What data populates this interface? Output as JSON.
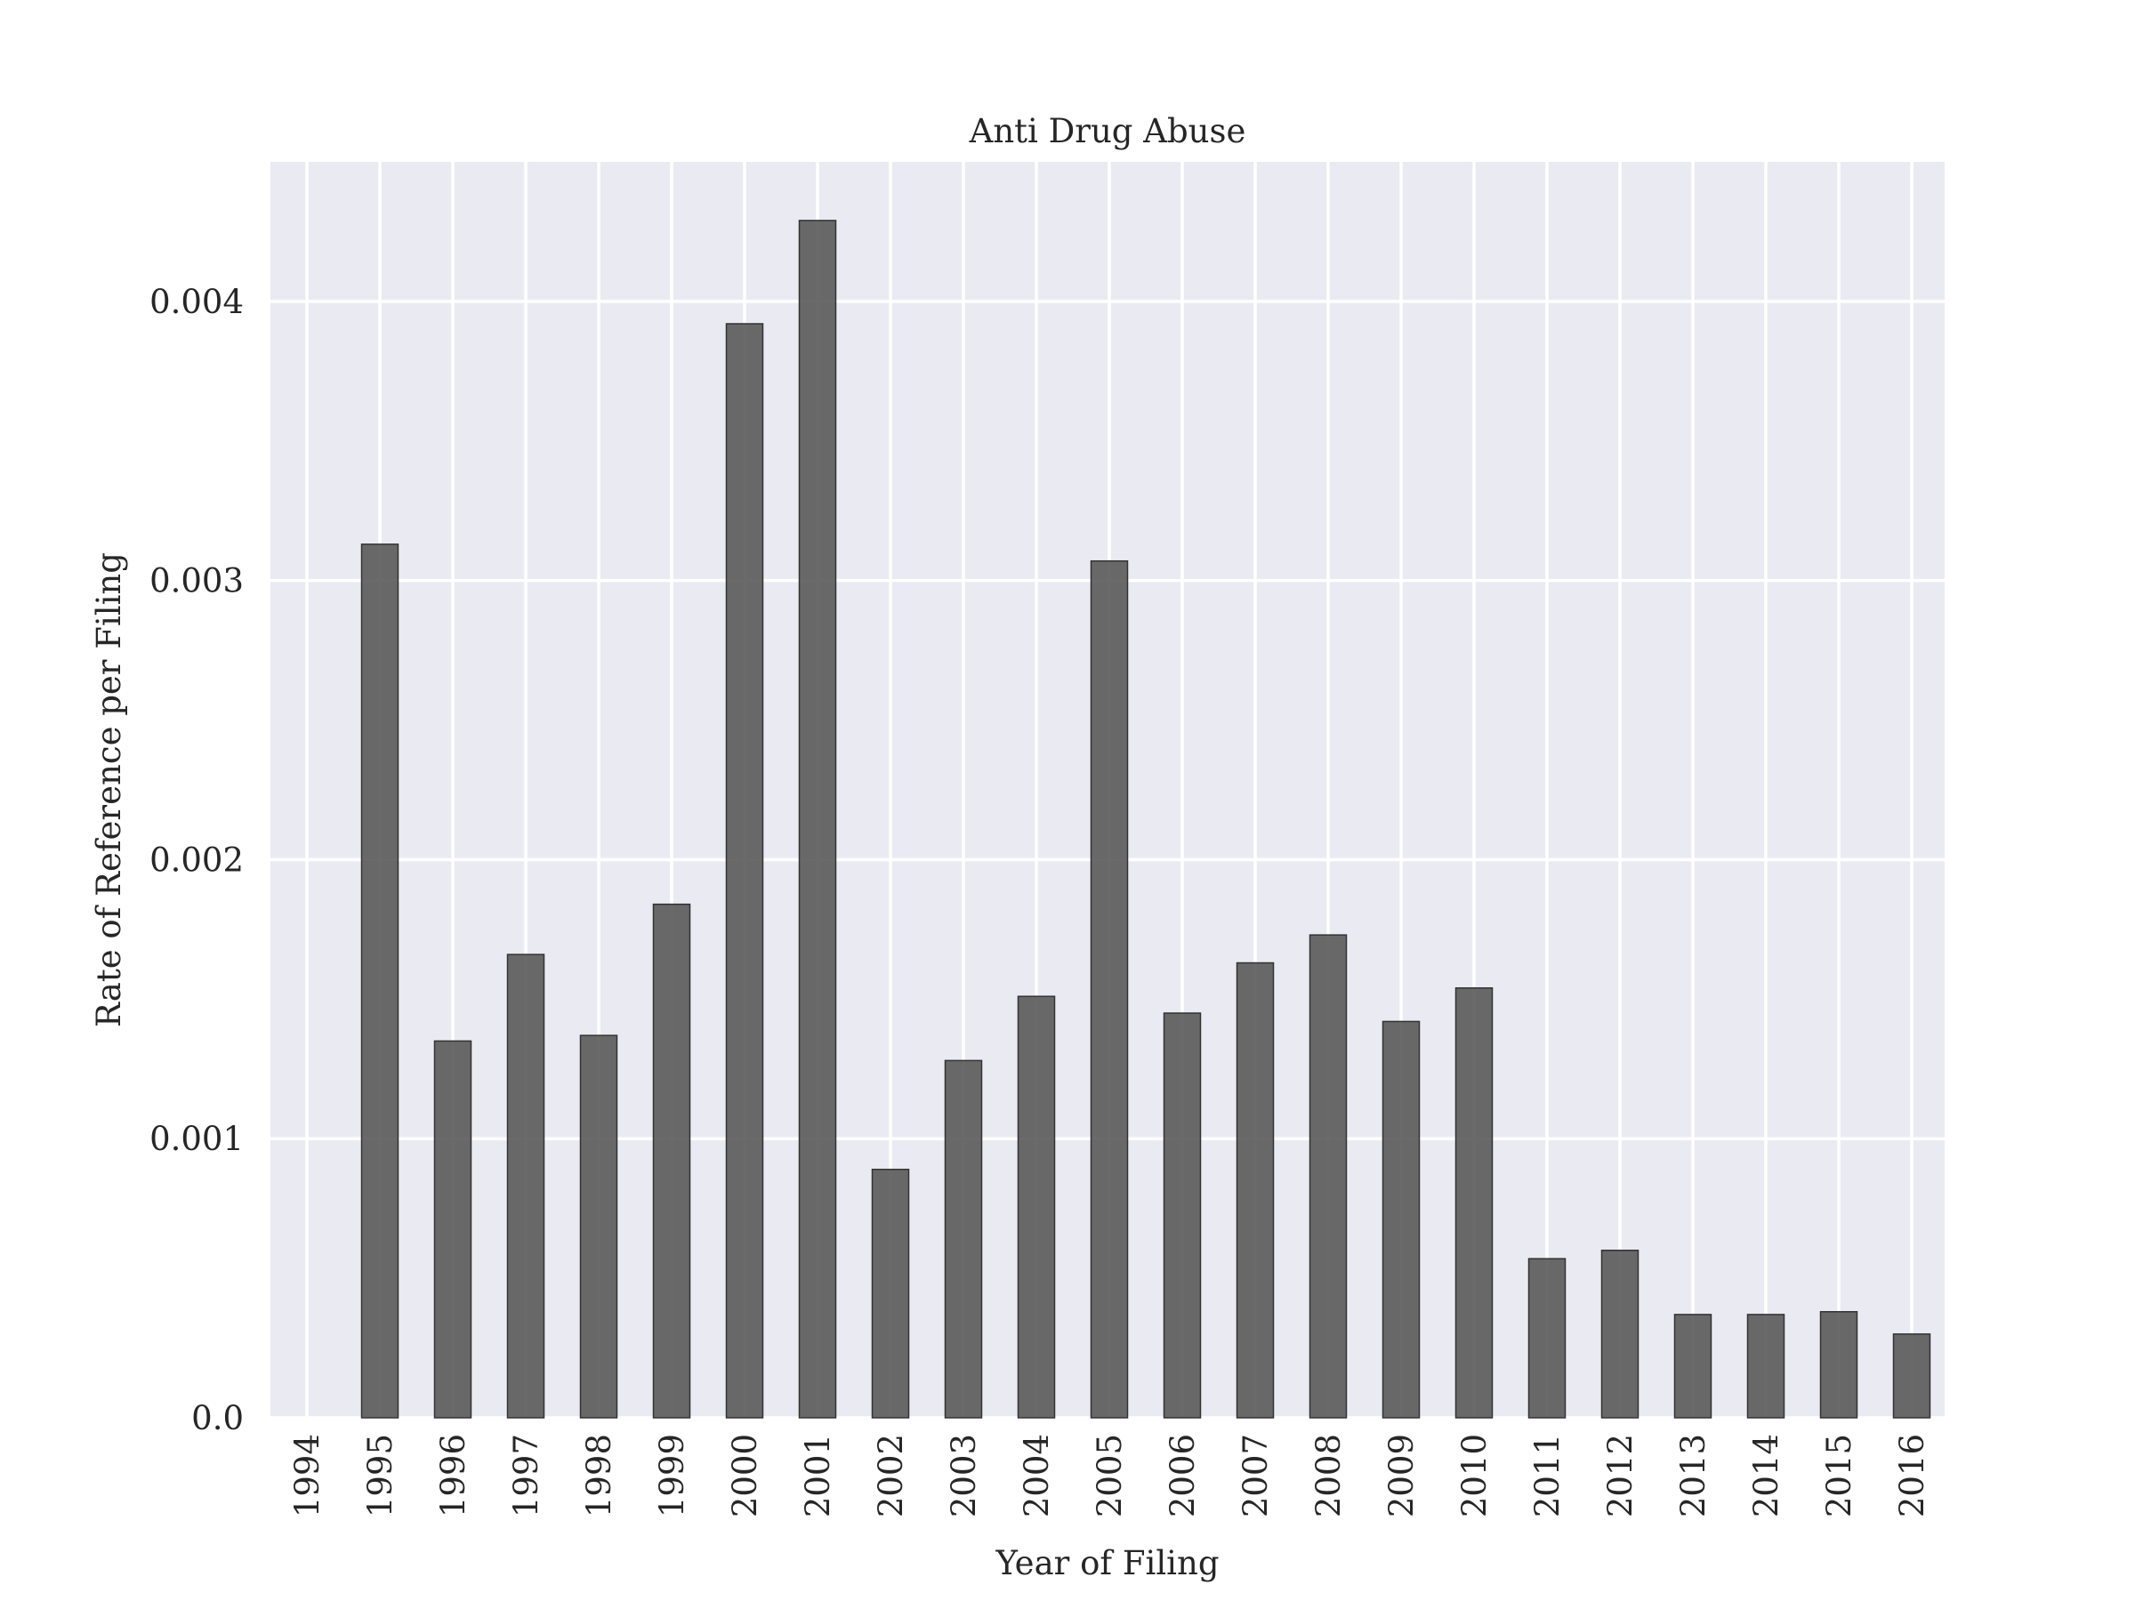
{
  "chart_data": {
    "type": "bar",
    "title": "Anti Drug Abuse",
    "xlabel": "Year of Filing",
    "ylabel": "Rate of Reference per Filing",
    "categories": [
      "1994",
      "1995",
      "1996",
      "1997",
      "1998",
      "1999",
      "2000",
      "2001",
      "2002",
      "2003",
      "2004",
      "2005",
      "2006",
      "2007",
      "2008",
      "2009",
      "2010",
      "2011",
      "2012",
      "2013",
      "2014",
      "2015",
      "2016"
    ],
    "values": [
      0.0,
      0.00313,
      0.00135,
      0.00166,
      0.00137,
      0.00184,
      0.00392,
      0.00429,
      0.00089,
      0.00128,
      0.00151,
      0.00307,
      0.00145,
      0.00163,
      0.00173,
      0.00142,
      0.00154,
      0.00057,
      0.0006,
      0.00037,
      0.00037,
      0.00038,
      0.0003
    ],
    "ylim": [
      0,
      0.0045
    ],
    "yticks": [
      0.0,
      0.001,
      0.002,
      0.003,
      0.004
    ],
    "ytick_labels": [
      "0.0",
      "0.001",
      "0.002",
      "0.003",
      "0.004"
    ],
    "grid": true,
    "legend": "none",
    "colors": {
      "plot_background": "#eaeaf2",
      "bar": "#555555",
      "grid": "#ffffff"
    }
  }
}
